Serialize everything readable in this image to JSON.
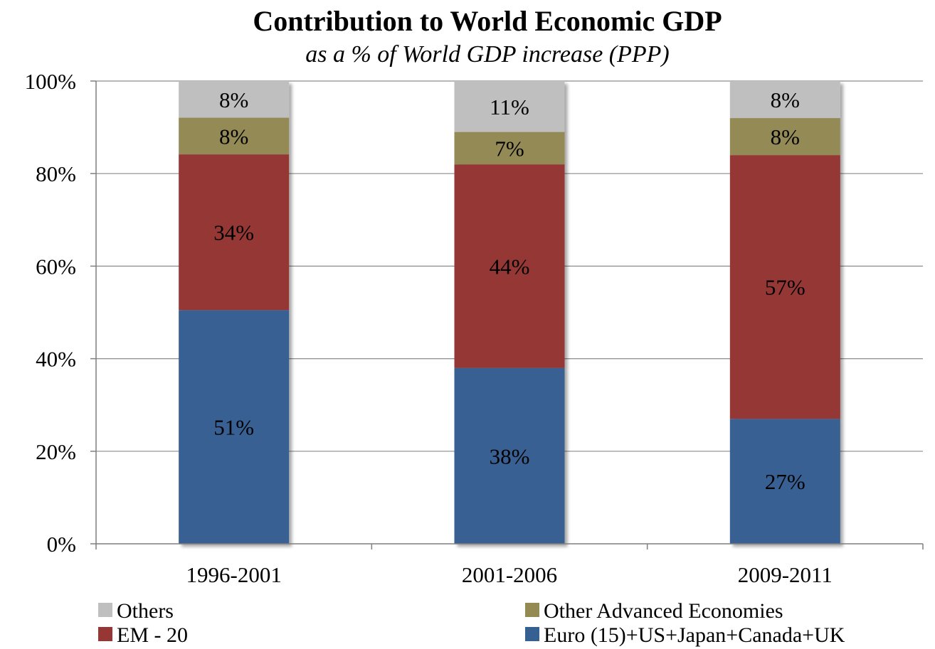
{
  "chart_data": {
    "type": "bar",
    "stacked": true,
    "title": "Contribution to World Economic GDP",
    "subtitle": "as a % of World GDP increase (PPP)",
    "categories": [
      "1996-2001",
      "2001-2006",
      "2009-2011"
    ],
    "series": [
      {
        "name": "Euro (15)+US+Japan+Canada+UK",
        "color": "#376092",
        "values": [
          51,
          38,
          27
        ],
        "labels": [
          "51%",
          "38%",
          "27%"
        ]
      },
      {
        "name": "EM - 20",
        "color": "#953735",
        "values": [
          34,
          44,
          57
        ],
        "labels": [
          "34%",
          "44%",
          "57%"
        ]
      },
      {
        "name": "Other Advanced Economies",
        "color": "#948A54",
        "values": [
          8,
          7,
          8
        ],
        "labels": [
          "8%",
          "7%",
          "8%"
        ]
      },
      {
        "name": "Others",
        "color": "#BFBFBF",
        "values": [
          8,
          11,
          8
        ],
        "labels": [
          "8%",
          "11%",
          "8%"
        ]
      }
    ],
    "yticks": [
      "0%",
      "20%",
      "40%",
      "60%",
      "80%",
      "100%"
    ],
    "ylim": [
      0,
      100
    ],
    "grid": true,
    "legend_position": "bottom"
  }
}
